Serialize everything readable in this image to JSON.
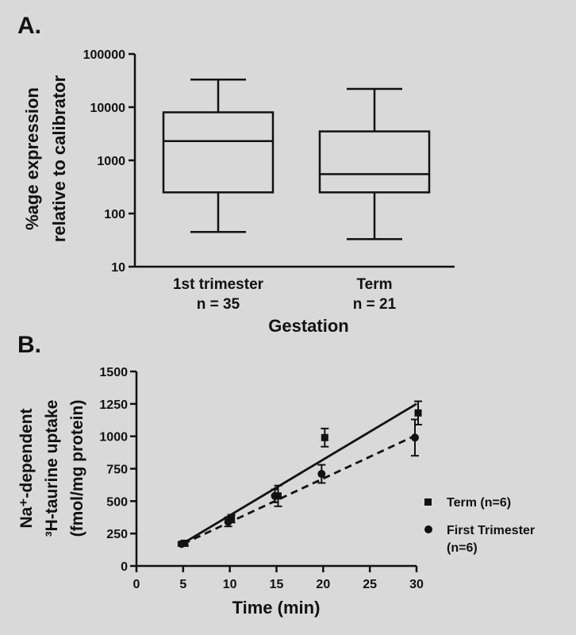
{
  "chart_data": [
    {
      "panel": "A.",
      "type": "box",
      "yscale": "log",
      "ylim": [
        10,
        100000
      ],
      "ylabel_line1": "%age expression",
      "ylabel_line2": "relative to calibrator",
      "xlabel": "Gestation",
      "yticks": [
        "10",
        "100",
        "1000",
        "10000",
        "100000"
      ],
      "categories": [
        {
          "name": "1st trimester",
          "n_label": "n = 35",
          "min": 45,
          "q1": 250,
          "median": 2300,
          "q3": 8000,
          "max": 33000
        },
        {
          "name": "Term",
          "n_label": "n = 21",
          "min": 33,
          "q1": 250,
          "median": 550,
          "q3": 3500,
          "max": 22000
        }
      ]
    },
    {
      "panel": "B.",
      "type": "scatter",
      "xlabel": "Time (min)",
      "ylabel_line1": "Na⁺-dependent",
      "ylabel_line2": "³H-taurine uptake",
      "ylabel_line3": "(fmol/mg protein)",
      "xlim": [
        0,
        30
      ],
      "ylim": [
        0,
        1500
      ],
      "xticks": [
        "0",
        "5",
        "10",
        "15",
        "20",
        "25",
        "30"
      ],
      "yticks": [
        "0",
        "250",
        "500",
        "750",
        "1000",
        "1250",
        "1500"
      ],
      "series": [
        {
          "name": "Term (n=6)",
          "marker": "square",
          "line": "solid",
          "points": [
            {
              "x": 5,
              "y": 175,
              "err": 20
            },
            {
              "x": 10,
              "y": 365,
              "err": 30
            },
            {
              "x": 15,
              "y": 540,
              "err": 80
            },
            {
              "x": 20,
              "y": 990,
              "err": 70
            },
            {
              "x": 30,
              "y": 1180,
              "err": 90
            }
          ],
          "fit": [
            [
              5,
              175
            ],
            [
              30,
              1250
            ]
          ]
        },
        {
          "name": "First Trimester",
          "name_line2": "(n=6)",
          "marker": "circle",
          "line": "dashed",
          "points": [
            {
              "x": 5,
              "y": 170,
              "err": 15
            },
            {
              "x": 10,
              "y": 340,
              "err": 35
            },
            {
              "x": 15,
              "y": 540,
              "err": 50
            },
            {
              "x": 20,
              "y": 710,
              "err": 70
            },
            {
              "x": 30,
              "y": 990,
              "err": 140
            }
          ],
          "fit": [
            [
              5,
              170
            ],
            [
              30,
              1010
            ]
          ]
        }
      ]
    }
  ]
}
